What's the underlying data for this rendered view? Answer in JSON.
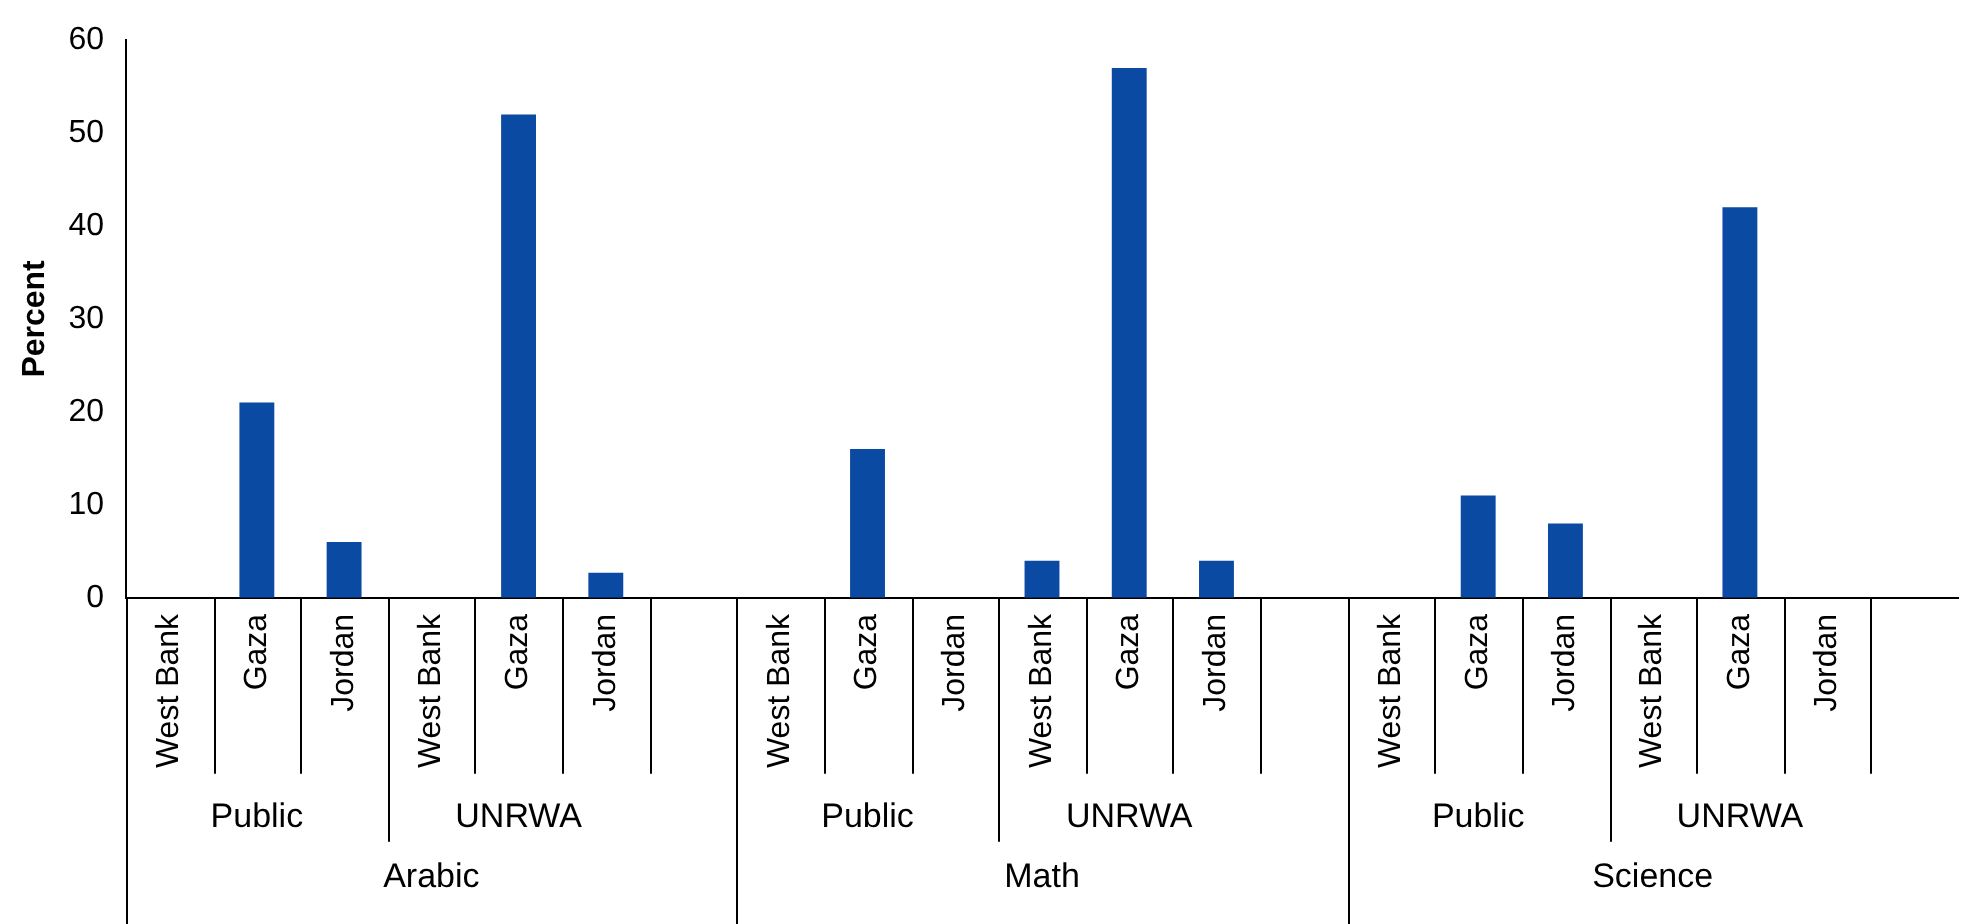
{
  "chart_data": {
    "type": "bar",
    "ylabel": "Percent",
    "categories": [
      "West Bank",
      "Gaza",
      "Jordan",
      "West Bank",
      "Gaza",
      "Jordan",
      null,
      "West Bank",
      "Gaza",
      "Jordan",
      "West Bank",
      "Gaza",
      "Jordan",
      null,
      "West Bank",
      "Gaza",
      "Jordan",
      "West Bank",
      "Gaza",
      "Jordan",
      null
    ],
    "values": [
      0,
      21,
      6,
      0,
      52,
      2.7,
      null,
      0,
      16,
      0,
      4,
      57,
      4,
      null,
      0,
      11,
      8,
      0,
      42,
      0,
      null
    ],
    "color": "#0b4aa2",
    "annotations": [
      "Public",
      "UNRWA",
      "Public",
      "UNRWA",
      "Public",
      "UNRWA",
      "Arabic",
      "Math",
      "Science"
    ],
    "ylim": [
      0,
      60
    ],
    "yticks": [
      0,
      10,
      20,
      30,
      40,
      50,
      60
    ],
    "grid": false,
    "legend": false
  }
}
